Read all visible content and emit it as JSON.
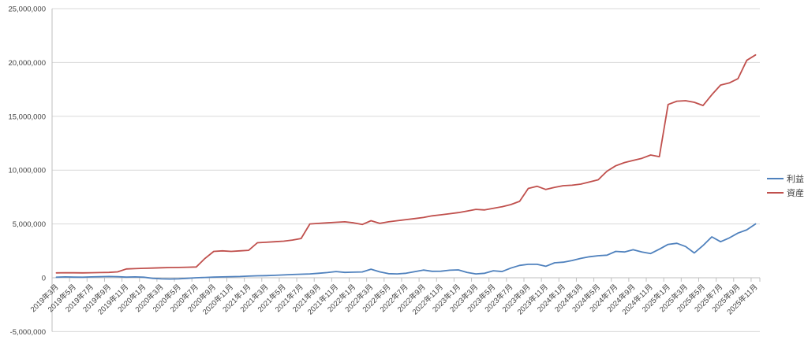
{
  "chart_data": {
    "type": "line",
    "title": "",
    "xlabel": "",
    "ylabel": "",
    "ylim": [
      -5000000,
      25000000
    ],
    "y_tick_values": [
      25000000,
      20000000,
      15000000,
      10000000,
      5000000,
      0,
      -5000000
    ],
    "y_tick_labels": [
      "25,000,000",
      "20,000,000",
      "15,000,000",
      "10,000,000",
      "5,000,000",
      "0",
      "-5,000,000"
    ],
    "grid": true,
    "legend_position": "right",
    "x_monthly": true,
    "x_label_every_n_points": 2,
    "x_tick_labels": [
      "2019年3月",
      "2019年5月",
      "2019年7月",
      "2019年9月",
      "2019年11月",
      "2020年1月",
      "2020年3月",
      "2020年5月",
      "2020年7月",
      "2020年9月",
      "2020年11月",
      "2021年1月",
      "2021年3月",
      "2021年5月",
      "2021年7月",
      "2021年9月",
      "2021年11月",
      "2022年1月",
      "2022年3月",
      "2022年5月",
      "2022年7月",
      "2022年9月",
      "2022年11月",
      "2023年1月",
      "2023年3月",
      "2023年5月",
      "2023年7月",
      "2023年9月",
      "2023年11月",
      "2024年1月",
      "2024年3月",
      "2024年5月",
      "2024年7月",
      "2024年9月",
      "2024年11月",
      "2025年1月",
      "2025年3月",
      "2025年5月",
      "2025年7月",
      "2025年9月",
      "2025年11月"
    ],
    "series": [
      {
        "name": "利益",
        "color": "#4F81BD",
        "values": [
          50000,
          80000,
          60000,
          50000,
          80000,
          100000,
          120000,
          100000,
          60000,
          80000,
          50000,
          -50000,
          -100000,
          -120000,
          -100000,
          -50000,
          0,
          30000,
          60000,
          80000,
          100000,
          120000,
          150000,
          180000,
          200000,
          230000,
          260000,
          300000,
          330000,
          360000,
          420000,
          480000,
          580000,
          500000,
          520000,
          540000,
          800000,
          550000,
          380000,
          360000,
          420000,
          560000,
          720000,
          600000,
          610000,
          700000,
          730000,
          500000,
          360000,
          420000,
          650000,
          580000,
          900000,
          1150000,
          1250000,
          1250000,
          1070000,
          1390000,
          1450000,
          1600000,
          1800000,
          1950000,
          2050000,
          2100000,
          2450000,
          2400000,
          2600000,
          2400000,
          2250000,
          2650000,
          3100000,
          3200000,
          2900000,
          2300000,
          3000000,
          3800000,
          3350000,
          3700000,
          4150000,
          4450000,
          5000000
        ]
      },
      {
        "name": "資産",
        "color": "#C0504D",
        "values": [
          450000,
          470000,
          460000,
          450000,
          470000,
          480000,
          500000,
          550000,
          820000,
          850000,
          880000,
          900000,
          930000,
          950000,
          960000,
          980000,
          1000000,
          1800000,
          2450000,
          2500000,
          2450000,
          2500000,
          2550000,
          3250000,
          3300000,
          3350000,
          3400000,
          3500000,
          3650000,
          5000000,
          5050000,
          5100000,
          5150000,
          5200000,
          5100000,
          4950000,
          5300000,
          5050000,
          5200000,
          5300000,
          5400000,
          5500000,
          5600000,
          5750000,
          5850000,
          5950000,
          6050000,
          6200000,
          6350000,
          6300000,
          6450000,
          6600000,
          6800000,
          7100000,
          8300000,
          8500000,
          8200000,
          8400000,
          8550000,
          8600000,
          8700000,
          8900000,
          9100000,
          9900000,
          10400000,
          10700000,
          10900000,
          11100000,
          11400000,
          11250000,
          16100000,
          16400000,
          16450000,
          16300000,
          16000000,
          17000000,
          17900000,
          18100000,
          18500000,
          20200000,
          20700000
        ]
      }
    ]
  },
  "legend": {
    "items": [
      {
        "label": "利益",
        "color": "#4F81BD"
      },
      {
        "label": "資産",
        "color": "#C0504D"
      }
    ]
  },
  "colors": {
    "background": "#ffffff",
    "gridline": "#d9d9d9",
    "axis_line": "#bfbfbf",
    "tick_text": "#404040",
    "profit_line": "#4F81BD",
    "asset_line": "#C0504D"
  }
}
